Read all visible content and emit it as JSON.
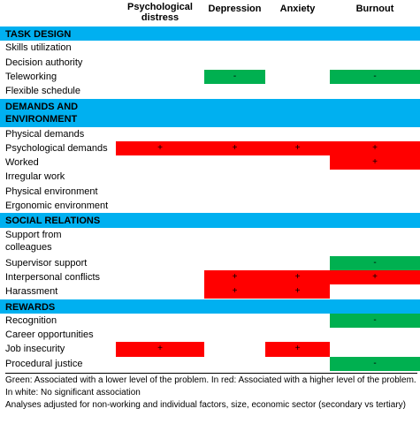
{
  "columns": [
    "Psychological distress",
    "Depression",
    "Anxiety",
    "Burnout"
  ],
  "colors": {
    "section": "#00b0f0",
    "positive": "#00b050",
    "negative": "#ff0000"
  },
  "sections": [
    {
      "title": "TASK DESIGN",
      "rows": [
        {
          "label": "Skills utilization",
          "cells": [
            "",
            "",
            "",
            ""
          ]
        },
        {
          "label": "Decision authority",
          "cells": [
            "",
            "",
            "",
            ""
          ]
        },
        {
          "label": "Teleworking",
          "cells": [
            "",
            "-",
            "",
            "-"
          ]
        },
        {
          "label": "Flexible schedule",
          "cells": [
            "",
            "",
            "",
            ""
          ]
        }
      ]
    },
    {
      "title": "DEMANDS AND ENVIRONMENT",
      "rows": [
        {
          "label": "Physical demands",
          "cells": [
            "",
            "",
            "",
            ""
          ]
        },
        {
          "label": "Psychological demands",
          "cells": [
            "+",
            "+",
            "+",
            "+"
          ]
        },
        {
          "label": "Worked",
          "cells": [
            "",
            "",
            "",
            "+"
          ]
        },
        {
          "label": "Irregular work",
          "cells": [
            "",
            "",
            "",
            ""
          ]
        },
        {
          "label": "Physical environment",
          "cells": [
            "",
            "",
            "",
            ""
          ]
        },
        {
          "label": "Ergonomic environment",
          "cells": [
            "",
            "",
            "",
            ""
          ]
        }
      ]
    },
    {
      "title": "SOCIAL RELATIONS",
      "rows": [
        {
          "label": "Support from colleagues",
          "cells": [
            "",
            "",
            "",
            ""
          ]
        },
        {
          "label": "Supervisor support",
          "cells": [
            "",
            "",
            "",
            "-"
          ]
        },
        {
          "label": "Interpersonal conflicts",
          "cells": [
            "",
            "+",
            "+",
            "+"
          ]
        },
        {
          "label": "Harassment",
          "cells": [
            "",
            "+",
            "+",
            ""
          ]
        }
      ]
    },
    {
      "title": "REWARDS",
      "rows": [
        {
          "label": "Recognition",
          "cells": [
            "",
            "",
            "",
            "-"
          ]
        },
        {
          "label": "Career opportunities",
          "cells": [
            "",
            "",
            "",
            ""
          ]
        },
        {
          "label": "Job insecurity",
          "cells": [
            "+",
            "",
            "+",
            ""
          ]
        },
        {
          "label": "Procedural justice",
          "cells": [
            "",
            "",
            "",
            "-"
          ]
        }
      ]
    }
  ],
  "footer": {
    "legend": "Green: Associated with a lower level of the problem.   In red: Associated with a higher level of the problem.   In white: No significant association",
    "note": "Analyses adjusted for non-working and individual factors, size, economic sector (secondary vs tertiary)"
  }
}
